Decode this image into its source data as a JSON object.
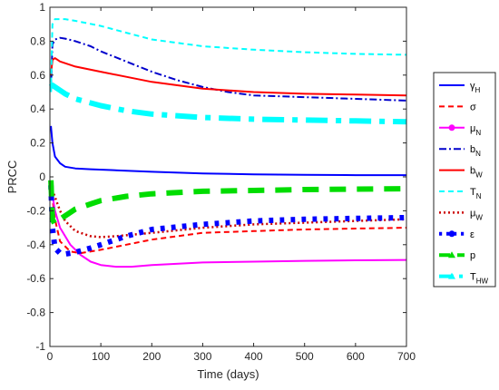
{
  "chart_data": {
    "type": "line",
    "xlabel": "Time (days)",
    "ylabel": "PRCC",
    "xlim": [
      0,
      700
    ],
    "ylim": [
      -1,
      1
    ],
    "xticks": [
      0,
      100,
      200,
      300,
      400,
      500,
      600,
      700
    ],
    "yticks": [
      -1,
      -0.8,
      -0.6,
      -0.4,
      -0.2,
      0,
      0.2,
      0.4,
      0.6,
      0.8,
      1
    ],
    "xtick_labels": [
      "0",
      "100",
      "200",
      "300",
      "400",
      "500",
      "600",
      "700"
    ],
    "ytick_labels": [
      "-1",
      "-0.8",
      "-0.6",
      "-0.4",
      "-0.2",
      "0",
      "0.2",
      "0.4",
      "0.6",
      "0.8",
      "1"
    ],
    "grid": false,
    "legend_position": "outside-right",
    "series": [
      {
        "name": "γ_H",
        "label_main": "γ",
        "label_sub": "H",
        "color": "#0000ff",
        "style": "solid",
        "width": "thin",
        "marker": "none",
        "x": [
          2,
          5,
          10,
          20,
          30,
          50,
          80,
          120,
          200,
          300,
          400,
          500,
          600,
          700
        ],
        "y": [
          0.3,
          0.2,
          0.12,
          0.08,
          0.06,
          0.05,
          0.045,
          0.04,
          0.03,
          0.02,
          0.015,
          0.012,
          0.01,
          0.01
        ]
      },
      {
        "name": "σ",
        "label_main": "σ",
        "label_sub": "",
        "color": "#ff0000",
        "style": "dashed",
        "width": "thin",
        "marker": "none",
        "x": [
          2,
          10,
          20,
          40,
          60,
          100,
          150,
          200,
          300,
          400,
          500,
          600,
          700
        ],
        "y": [
          -0.05,
          -0.25,
          -0.38,
          -0.44,
          -0.45,
          -0.43,
          -0.4,
          -0.37,
          -0.33,
          -0.32,
          -0.31,
          -0.305,
          -0.3
        ]
      },
      {
        "name": "μ_N",
        "label_main": "μ",
        "label_sub": "N",
        "color": "#ff00ff",
        "style": "solid",
        "width": "thin",
        "marker": "circle",
        "x": [
          2,
          10,
          20,
          40,
          60,
          80,
          100,
          130,
          160,
          200,
          300,
          400,
          500,
          600,
          700
        ],
        "y": [
          -0.05,
          -0.2,
          -0.3,
          -0.4,
          -0.46,
          -0.5,
          -0.52,
          -0.53,
          -0.53,
          -0.52,
          -0.505,
          -0.5,
          -0.495,
          -0.492,
          -0.49
        ]
      },
      {
        "name": "b_N",
        "label_main": "b",
        "label_sub": "N",
        "color": "#0000cc",
        "style": "dashdot",
        "width": "thin",
        "marker": "none",
        "x": [
          2,
          5,
          10,
          20,
          30,
          50,
          80,
          100,
          150,
          200,
          250,
          300,
          350,
          400,
          500,
          600,
          700
        ],
        "y": [
          0.5,
          0.78,
          0.81,
          0.82,
          0.815,
          0.8,
          0.77,
          0.74,
          0.68,
          0.62,
          0.57,
          0.53,
          0.5,
          0.48,
          0.47,
          0.46,
          0.45
        ]
      },
      {
        "name": "b_W",
        "label_main": "b",
        "label_sub": "W",
        "color": "#ff0000",
        "style": "solid",
        "width": "thin",
        "marker": "none",
        "x": [
          2,
          5,
          10,
          20,
          50,
          100,
          150,
          200,
          250,
          300,
          400,
          500,
          600,
          700
        ],
        "y": [
          0.6,
          0.69,
          0.7,
          0.68,
          0.65,
          0.62,
          0.59,
          0.56,
          0.54,
          0.52,
          0.5,
          0.49,
          0.485,
          0.48
        ]
      },
      {
        "name": "T_N",
        "label_main": "T",
        "label_sub": "N",
        "color": "#00ffff",
        "style": "dashed",
        "width": "thin",
        "marker": "none",
        "x": [
          2,
          5,
          10,
          20,
          30,
          50,
          100,
          150,
          200,
          300,
          400,
          500,
          600,
          700
        ],
        "y": [
          0.5,
          0.9,
          0.93,
          0.93,
          0.93,
          0.92,
          0.89,
          0.85,
          0.81,
          0.77,
          0.75,
          0.735,
          0.725,
          0.72
        ]
      },
      {
        "name": "μ_W",
        "label_main": "μ",
        "label_sub": "W",
        "color": "#cc0000",
        "style": "dotted",
        "width": "medium",
        "marker": "none",
        "x": [
          2,
          10,
          20,
          30,
          50,
          80,
          100,
          130,
          200,
          300,
          400,
          500,
          600,
          700
        ],
        "y": [
          -0.05,
          -0.12,
          -0.2,
          -0.26,
          -0.32,
          -0.35,
          -0.355,
          -0.35,
          -0.33,
          -0.3,
          -0.28,
          -0.27,
          -0.26,
          -0.25
        ]
      },
      {
        "name": "ε",
        "label_main": "ε",
        "label_sub": "",
        "color": "#0000ff",
        "style": "dotted",
        "width": "thick",
        "marker": "circle",
        "x": [
          2,
          5,
          10,
          20,
          30,
          50,
          80,
          100,
          150,
          200,
          300,
          400,
          500,
          600,
          700
        ],
        "y": [
          -0.05,
          -0.3,
          -0.42,
          -0.45,
          -0.455,
          -0.445,
          -0.42,
          -0.4,
          -0.35,
          -0.31,
          -0.28,
          -0.26,
          -0.25,
          -0.245,
          -0.24
        ]
      },
      {
        "name": "p",
        "label_main": "p",
        "label_sub": "",
        "color": "#00dd00",
        "style": "dashed",
        "width": "thick",
        "marker": "triangle",
        "x": [
          2,
          5,
          10,
          20,
          30,
          50,
          80,
          100,
          150,
          200,
          300,
          400,
          500,
          600,
          700
        ],
        "y": [
          -0.02,
          -0.25,
          -0.28,
          -0.25,
          -0.23,
          -0.19,
          -0.16,
          -0.14,
          -0.115,
          -0.1,
          -0.085,
          -0.08,
          -0.075,
          -0.072,
          -0.07
        ]
      },
      {
        "name": "T_HW",
        "label_main": "T",
        "label_sub": "HW",
        "color": "#00ffff",
        "style": "dashdot",
        "width": "thick",
        "marker": "triangle",
        "x": [
          2,
          5,
          10,
          20,
          30,
          50,
          100,
          150,
          200,
          300,
          400,
          500,
          600,
          700
        ],
        "y": [
          0.53,
          0.54,
          0.53,
          0.51,
          0.49,
          0.46,
          0.42,
          0.39,
          0.37,
          0.35,
          0.34,
          0.335,
          0.33,
          0.325
        ]
      }
    ]
  }
}
